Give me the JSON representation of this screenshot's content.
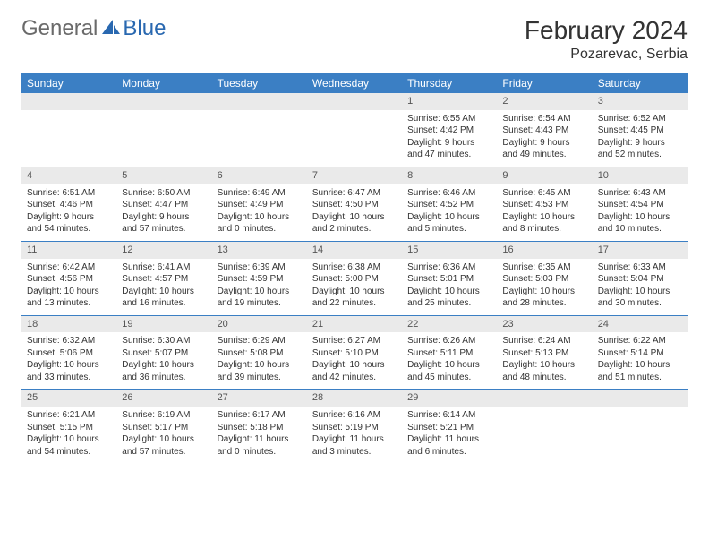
{
  "logo": {
    "general": "General",
    "blue": "Blue"
  },
  "title": "February 2024",
  "location": "Pozarevac, Serbia",
  "colors": {
    "header_bg": "#3b7fc4",
    "header_text": "#ffffff",
    "daynum_bg": "#eaeaea",
    "cell_border": "#3b7fc4",
    "logo_gray": "#6a6a6a",
    "logo_blue": "#2968b0"
  },
  "weekdays": [
    "Sunday",
    "Monday",
    "Tuesday",
    "Wednesday",
    "Thursday",
    "Friday",
    "Saturday"
  ],
  "weeks": [
    [
      null,
      null,
      null,
      null,
      {
        "d": "1",
        "sr": "Sunrise: 6:55 AM",
        "ss": "Sunset: 4:42 PM",
        "dl1": "Daylight: 9 hours",
        "dl2": "and 47 minutes."
      },
      {
        "d": "2",
        "sr": "Sunrise: 6:54 AM",
        "ss": "Sunset: 4:43 PM",
        "dl1": "Daylight: 9 hours",
        "dl2": "and 49 minutes."
      },
      {
        "d": "3",
        "sr": "Sunrise: 6:52 AM",
        "ss": "Sunset: 4:45 PM",
        "dl1": "Daylight: 9 hours",
        "dl2": "and 52 minutes."
      }
    ],
    [
      {
        "d": "4",
        "sr": "Sunrise: 6:51 AM",
        "ss": "Sunset: 4:46 PM",
        "dl1": "Daylight: 9 hours",
        "dl2": "and 54 minutes."
      },
      {
        "d": "5",
        "sr": "Sunrise: 6:50 AM",
        "ss": "Sunset: 4:47 PM",
        "dl1": "Daylight: 9 hours",
        "dl2": "and 57 minutes."
      },
      {
        "d": "6",
        "sr": "Sunrise: 6:49 AM",
        "ss": "Sunset: 4:49 PM",
        "dl1": "Daylight: 10 hours",
        "dl2": "and 0 minutes."
      },
      {
        "d": "7",
        "sr": "Sunrise: 6:47 AM",
        "ss": "Sunset: 4:50 PM",
        "dl1": "Daylight: 10 hours",
        "dl2": "and 2 minutes."
      },
      {
        "d": "8",
        "sr": "Sunrise: 6:46 AM",
        "ss": "Sunset: 4:52 PM",
        "dl1": "Daylight: 10 hours",
        "dl2": "and 5 minutes."
      },
      {
        "d": "9",
        "sr": "Sunrise: 6:45 AM",
        "ss": "Sunset: 4:53 PM",
        "dl1": "Daylight: 10 hours",
        "dl2": "and 8 minutes."
      },
      {
        "d": "10",
        "sr": "Sunrise: 6:43 AM",
        "ss": "Sunset: 4:54 PM",
        "dl1": "Daylight: 10 hours",
        "dl2": "and 10 minutes."
      }
    ],
    [
      {
        "d": "11",
        "sr": "Sunrise: 6:42 AM",
        "ss": "Sunset: 4:56 PM",
        "dl1": "Daylight: 10 hours",
        "dl2": "and 13 minutes."
      },
      {
        "d": "12",
        "sr": "Sunrise: 6:41 AM",
        "ss": "Sunset: 4:57 PM",
        "dl1": "Daylight: 10 hours",
        "dl2": "and 16 minutes."
      },
      {
        "d": "13",
        "sr": "Sunrise: 6:39 AM",
        "ss": "Sunset: 4:59 PM",
        "dl1": "Daylight: 10 hours",
        "dl2": "and 19 minutes."
      },
      {
        "d": "14",
        "sr": "Sunrise: 6:38 AM",
        "ss": "Sunset: 5:00 PM",
        "dl1": "Daylight: 10 hours",
        "dl2": "and 22 minutes."
      },
      {
        "d": "15",
        "sr": "Sunrise: 6:36 AM",
        "ss": "Sunset: 5:01 PM",
        "dl1": "Daylight: 10 hours",
        "dl2": "and 25 minutes."
      },
      {
        "d": "16",
        "sr": "Sunrise: 6:35 AM",
        "ss": "Sunset: 5:03 PM",
        "dl1": "Daylight: 10 hours",
        "dl2": "and 28 minutes."
      },
      {
        "d": "17",
        "sr": "Sunrise: 6:33 AM",
        "ss": "Sunset: 5:04 PM",
        "dl1": "Daylight: 10 hours",
        "dl2": "and 30 minutes."
      }
    ],
    [
      {
        "d": "18",
        "sr": "Sunrise: 6:32 AM",
        "ss": "Sunset: 5:06 PM",
        "dl1": "Daylight: 10 hours",
        "dl2": "and 33 minutes."
      },
      {
        "d": "19",
        "sr": "Sunrise: 6:30 AM",
        "ss": "Sunset: 5:07 PM",
        "dl1": "Daylight: 10 hours",
        "dl2": "and 36 minutes."
      },
      {
        "d": "20",
        "sr": "Sunrise: 6:29 AM",
        "ss": "Sunset: 5:08 PM",
        "dl1": "Daylight: 10 hours",
        "dl2": "and 39 minutes."
      },
      {
        "d": "21",
        "sr": "Sunrise: 6:27 AM",
        "ss": "Sunset: 5:10 PM",
        "dl1": "Daylight: 10 hours",
        "dl2": "and 42 minutes."
      },
      {
        "d": "22",
        "sr": "Sunrise: 6:26 AM",
        "ss": "Sunset: 5:11 PM",
        "dl1": "Daylight: 10 hours",
        "dl2": "and 45 minutes."
      },
      {
        "d": "23",
        "sr": "Sunrise: 6:24 AM",
        "ss": "Sunset: 5:13 PM",
        "dl1": "Daylight: 10 hours",
        "dl2": "and 48 minutes."
      },
      {
        "d": "24",
        "sr": "Sunrise: 6:22 AM",
        "ss": "Sunset: 5:14 PM",
        "dl1": "Daylight: 10 hours",
        "dl2": "and 51 minutes."
      }
    ],
    [
      {
        "d": "25",
        "sr": "Sunrise: 6:21 AM",
        "ss": "Sunset: 5:15 PM",
        "dl1": "Daylight: 10 hours",
        "dl2": "and 54 minutes."
      },
      {
        "d": "26",
        "sr": "Sunrise: 6:19 AM",
        "ss": "Sunset: 5:17 PM",
        "dl1": "Daylight: 10 hours",
        "dl2": "and 57 minutes."
      },
      {
        "d": "27",
        "sr": "Sunrise: 6:17 AM",
        "ss": "Sunset: 5:18 PM",
        "dl1": "Daylight: 11 hours",
        "dl2": "and 0 minutes."
      },
      {
        "d": "28",
        "sr": "Sunrise: 6:16 AM",
        "ss": "Sunset: 5:19 PM",
        "dl1": "Daylight: 11 hours",
        "dl2": "and 3 minutes."
      },
      {
        "d": "29",
        "sr": "Sunrise: 6:14 AM",
        "ss": "Sunset: 5:21 PM",
        "dl1": "Daylight: 11 hours",
        "dl2": "and 6 minutes."
      },
      null,
      null
    ]
  ]
}
